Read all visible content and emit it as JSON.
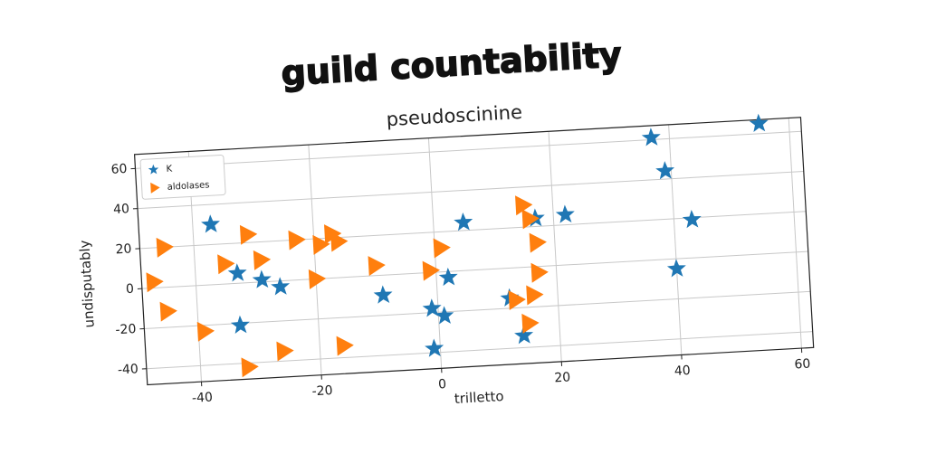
{
  "chart_data": {
    "type": "scatter",
    "title": "guild countability",
    "subtitle": "pseudoscinine",
    "x_label": "trilletto",
    "y_label": "undisputably",
    "xlim": [
      -49,
      62
    ],
    "ylim": [
      -48,
      67
    ],
    "xticks": [
      -40,
      -20,
      0,
      20,
      40,
      60
    ],
    "yticks": [
      -40,
      -20,
      0,
      20,
      40,
      60
    ],
    "grid": true,
    "legend": "upper left",
    "series": [
      {
        "name": "K",
        "color": "#1f77b4",
        "marker": "star",
        "x": [
          -37,
          -33,
          -33,
          -29,
          -26,
          -9,
          -1,
          -1,
          1,
          2,
          5,
          12,
          14,
          17,
          22,
          37,
          39,
          40,
          43,
          55
        ],
        "values": [
          30,
          5,
          -21,
          1,
          -3,
          -10,
          -18,
          -38,
          -22,
          -3,
          24,
          -15,
          -34,
          24,
          25,
          61,
          44,
          -5,
          19,
          65
        ]
      },
      {
        "name": "aldolases",
        "color": "#ff7f0e",
        "marker": "triangle-right",
        "x": [
          -45,
          -47,
          -45,
          -39,
          -35,
          -31,
          -29,
          -32,
          -26,
          -23,
          -20,
          -19,
          -17,
          -16,
          -16,
          -10,
          -1,
          1,
          13,
          15,
          15,
          16,
          16,
          17,
          17
        ],
        "values": [
          20,
          3,
          -12,
          -23,
          10,
          24,
          11,
          -42,
          -35,
          20,
          0,
          17,
          22,
          18,
          -34,
          5,
          1,
          12,
          -16,
          31,
          -28,
          24,
          -14,
          -3,
          12
        ]
      }
    ]
  }
}
